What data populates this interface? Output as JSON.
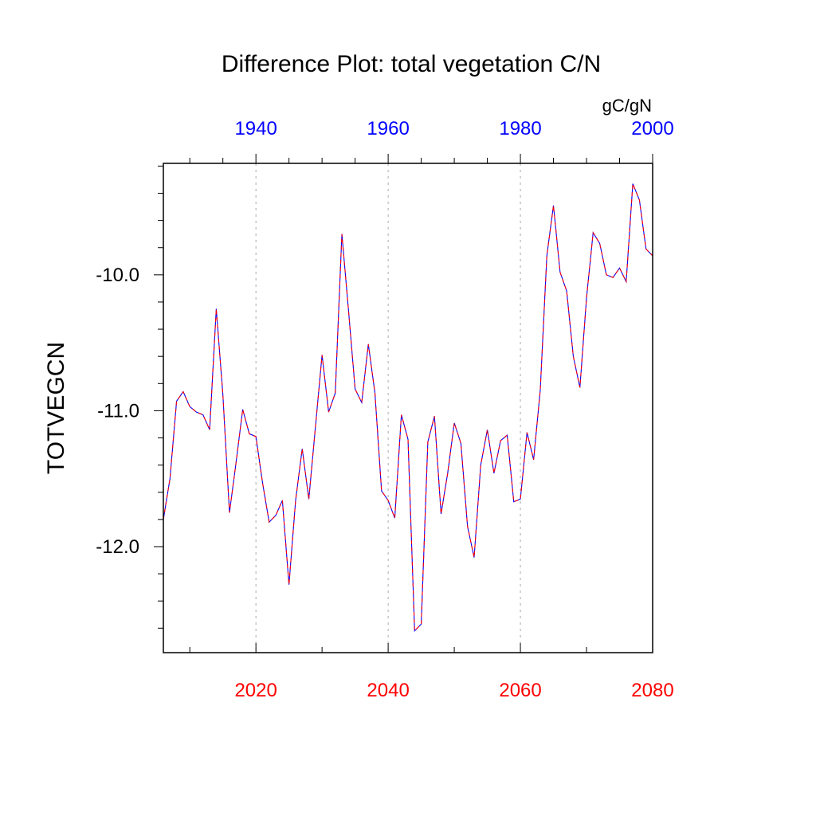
{
  "chart_data": {
    "type": "line",
    "title": "Difference Plot: total vegetation C/N",
    "ylabel": "TOTVEGCN",
    "units": "gC/gN",
    "grid": "vertical dashed lines at bottom-axis major ticks",
    "xlim": [
      2006,
      2080
    ],
    "ylim": [
      -12.78,
      -9.18
    ],
    "bottom_axis": {
      "ticks": [
        2020,
        2040,
        2060,
        2080
      ],
      "labels": [
        "2020",
        "2040",
        "2060",
        "2080"
      ],
      "color": "#ff0000"
    },
    "top_axis": {
      "ticks": [
        1940,
        1960,
        1980,
        2000
      ],
      "labels": [
        "1940",
        "1960",
        "1980",
        "2000"
      ],
      "color": "#0000ff",
      "offset_years": 80
    },
    "y_axis": {
      "ticks": [
        -10.0,
        -11.0,
        -12.0
      ],
      "labels": [
        "-10.0",
        "-11.0",
        "-12.0"
      ]
    },
    "x": [
      2006,
      2007,
      2008,
      2009,
      2010,
      2011,
      2012,
      2013,
      2014,
      2015,
      2016,
      2017,
      2018,
      2019,
      2020,
      2021,
      2022,
      2023,
      2024,
      2025,
      2026,
      2027,
      2028,
      2029,
      2030,
      2031,
      2032,
      2033,
      2034,
      2035,
      2036,
      2037,
      2038,
      2039,
      2040,
      2041,
      2042,
      2043,
      2044,
      2045,
      2046,
      2047,
      2048,
      2049,
      2050,
      2051,
      2052,
      2053,
      2054,
      2055,
      2056,
      2057,
      2058,
      2059,
      2060,
      2061,
      2062,
      2063,
      2064,
      2065,
      2066,
      2067,
      2068,
      2069,
      2070,
      2071,
      2072,
      2073,
      2074,
      2075,
      2076,
      2077,
      2078,
      2079,
      2080
    ],
    "series": [
      {
        "color": "#0000ff",
        "style": "solid",
        "values": [
          -11.8,
          -11.5,
          -10.93,
          -10.86,
          -10.97,
          -11.01,
          -11.03,
          -11.14,
          -10.25,
          -10.88,
          -11.75,
          -11.38,
          -10.99,
          -11.17,
          -11.19,
          -11.53,
          -11.82,
          -11.77,
          -11.66,
          -12.28,
          -11.66,
          -11.28,
          -11.65,
          -11.12,
          -10.59,
          -11.01,
          -10.87,
          -9.7,
          -10.26,
          -10.84,
          -10.94,
          -10.51,
          -10.87,
          -11.59,
          -11.66,
          -11.79,
          -11.03,
          -11.21,
          -12.62,
          -12.57,
          -11.23,
          -11.04,
          -11.76,
          -11.46,
          -11.09,
          -11.24,
          -11.85,
          -12.08,
          -11.4,
          -11.14,
          -11.46,
          -11.22,
          -11.18,
          -11.67,
          -11.65,
          -11.16,
          -11.36,
          -10.85,
          -9.86,
          -9.49,
          -9.98,
          -10.12,
          -10.6,
          -10.83,
          -10.17,
          -9.69,
          -9.77,
          -10.0,
          -10.02,
          -9.95,
          -10.05,
          -9.33,
          -9.45,
          -9.81,
          -9.86
        ]
      },
      {
        "color": "#ff0000",
        "style": "dashed",
        "values": [
          -11.8,
          -11.5,
          -10.93,
          -10.86,
          -10.97,
          -11.01,
          -11.03,
          -11.14,
          -10.25,
          -10.88,
          -11.75,
          -11.38,
          -10.99,
          -11.17,
          -11.19,
          -11.53,
          -11.82,
          -11.77,
          -11.66,
          -12.28,
          -11.66,
          -11.28,
          -11.65,
          -11.12,
          -10.59,
          -11.01,
          -10.87,
          -9.7,
          -10.26,
          -10.84,
          -10.94,
          -10.51,
          -10.87,
          -11.59,
          -11.66,
          -11.79,
          -11.03,
          -11.21,
          -12.62,
          -12.57,
          -11.23,
          -11.04,
          -11.76,
          -11.46,
          -11.09,
          -11.24,
          -11.85,
          -12.08,
          -11.4,
          -11.14,
          -11.46,
          -11.22,
          -11.18,
          -11.67,
          -11.65,
          -11.16,
          -11.36,
          -10.85,
          -9.86,
          -9.49,
          -9.98,
          -10.12,
          -10.6,
          -10.83,
          -10.17,
          -9.69,
          -9.77,
          -10.0,
          -10.02,
          -9.95,
          -10.05,
          -9.33,
          -9.45,
          -9.81,
          -9.86
        ]
      }
    ]
  }
}
